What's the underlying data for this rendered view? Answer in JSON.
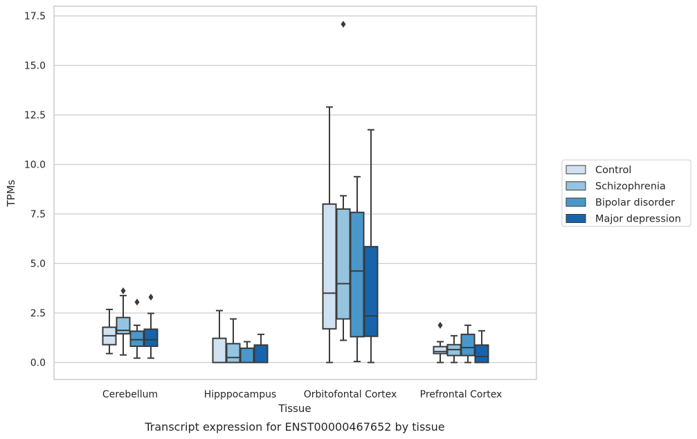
{
  "chart_data": {
    "type": "box",
    "ylabel": "TPMs",
    "xlabel": "Tissue",
    "caption": "Transcript expression for ENST00000467652 by tissue",
    "ylim": [
      -0.8,
      17.8
    ],
    "yticks": [
      "0.0",
      "2.5",
      "5.0",
      "7.5",
      "10.0",
      "12.5",
      "15.0",
      "17.5"
    ],
    "ytick_values": [
      0,
      2.5,
      5,
      7.5,
      10,
      12.5,
      15,
      17.5
    ],
    "grid": "horizontal",
    "legend_position": "right",
    "categories": [
      "Cerebellum",
      "Hipppocampus",
      "Orbitofontal Cortex",
      "Prefrontal Cortex"
    ],
    "series": [
      {
        "name": "Control",
        "color": "#d0e1f2",
        "boxes": [
          {
            "whislo": 0.45,
            "q1": 0.9,
            "med": 1.35,
            "q3": 1.78,
            "whishi": 2.68,
            "fliers": []
          },
          {
            "whislo": 0.0,
            "q1": 0.0,
            "med": 0.0,
            "q3": 1.22,
            "whishi": 2.62,
            "fliers": []
          },
          {
            "whislo": 0.0,
            "q1": 1.7,
            "med": 3.5,
            "q3": 8.0,
            "whishi": 12.9,
            "fliers": []
          },
          {
            "whislo": 0.0,
            "q1": 0.45,
            "med": 0.55,
            "q3": 0.8,
            "whishi": 1.05,
            "fliers": [
              1.88
            ]
          }
        ]
      },
      {
        "name": "Schizophrenia",
        "color": "#94c4df",
        "boxes": [
          {
            "whislo": 0.38,
            "q1": 1.45,
            "med": 1.62,
            "q3": 2.27,
            "whishi": 3.38,
            "fliers": [
              3.62
            ]
          },
          {
            "whislo": 0.0,
            "q1": 0.0,
            "med": 0.25,
            "q3": 0.95,
            "whishi": 2.2,
            "fliers": []
          },
          {
            "whislo": 1.12,
            "q1": 2.2,
            "med": 3.98,
            "q3": 7.75,
            "whishi": 8.42,
            "fliers": [
              17.08
            ]
          },
          {
            "whislo": 0.0,
            "q1": 0.35,
            "med": 0.65,
            "q3": 0.9,
            "whishi": 1.35,
            "fliers": []
          }
        ]
      },
      {
        "name": "Bipolar disorder",
        "color": "#4a98c9",
        "boxes": [
          {
            "whislo": 0.22,
            "q1": 0.82,
            "med": 1.15,
            "q3": 1.58,
            "whishi": 1.88,
            "fliers": [
              3.05
            ]
          },
          {
            "whislo": 0.0,
            "q1": 0.0,
            "med": 0.0,
            "q3": 0.72,
            "whishi": 1.05,
            "fliers": []
          },
          {
            "whislo": 0.05,
            "q1": 1.3,
            "med": 4.62,
            "q3": 7.58,
            "whishi": 9.38,
            "fliers": []
          },
          {
            "whislo": 0.0,
            "q1": 0.35,
            "med": 0.75,
            "q3": 1.42,
            "whishi": 1.88,
            "fliers": []
          }
        ]
      },
      {
        "name": "Major depression",
        "color": "#1764ab",
        "boxes": [
          {
            "whislo": 0.22,
            "q1": 0.82,
            "med": 1.15,
            "q3": 1.68,
            "whishi": 2.48,
            "fliers": [
              3.3
            ]
          },
          {
            "whislo": 0.0,
            "q1": 0.0,
            "med": 0.0,
            "q3": 0.88,
            "whishi": 1.42,
            "fliers": []
          },
          {
            "whislo": 0.0,
            "q1": 1.32,
            "med": 2.35,
            "q3": 5.85,
            "whishi": 11.75,
            "fliers": []
          },
          {
            "whislo": 0.0,
            "q1": 0.0,
            "med": 0.3,
            "q3": 0.88,
            "whishi": 1.6,
            "fliers": []
          }
        ]
      }
    ]
  },
  "colors": {
    "grid": "#cccccc",
    "frame": "#cccccc",
    "edge": "#3a3a3a",
    "text": "#262626"
  }
}
